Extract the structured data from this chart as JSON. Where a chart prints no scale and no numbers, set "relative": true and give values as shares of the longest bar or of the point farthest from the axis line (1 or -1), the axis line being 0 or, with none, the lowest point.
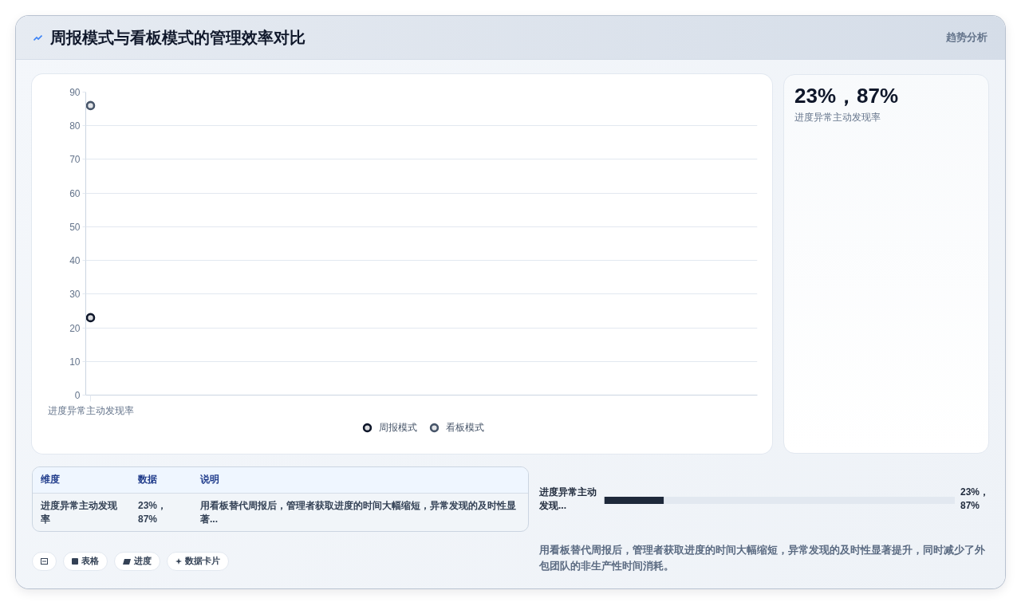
{
  "chart_data": [
    {
      "type": "line",
      "title": "周报模式与看板模式的管理效率对比",
      "categories": [
        "进度异常主动发现率"
      ],
      "series": [
        {
          "name": "周报模式",
          "color": "#0f172a",
          "values": [
            23
          ]
        },
        {
          "name": "看板模式",
          "color": "#475569",
          "values": [
            86
          ]
        }
      ],
      "ylim": [
        0,
        90
      ],
      "yticks": [
        0,
        10,
        20,
        30,
        40,
        50,
        60,
        70,
        80,
        90
      ],
      "grid": "y",
      "legend": "bottom",
      "marker": "circle"
    },
    {
      "type": "other",
      "title": "趋势分析",
      "annotations": [
        "23%，87%",
        "进度异常主动发现率"
      ]
    },
    {
      "type": "other",
      "categories": [
        "维度",
        "数据",
        "说明"
      ],
      "annotations": [
        "进度异常主动发现率",
        "23%，87%",
        "用看板替代周报后，管理者获取进度的时间大幅缩短，异常发现的及时性显著..."
      ]
    },
    {
      "type": "bar",
      "orientation": "horizontal",
      "stacked": true,
      "relative": true,
      "categories": [
        "进度异常主动发现..."
      ],
      "series": [
        {
          "color": "#1e293b",
          "values": [
            0.17
          ]
        },
        {
          "color": "#e2e8f0",
          "values": [
            0.83
          ]
        }
      ],
      "annotations": [
        "23%，87%",
        "用看板替代周报后，管理者获取进度的时间大幅缩短，异常发现的及时性显著提升，同时减少了外包团队的非生产性时间消耗。"
      ]
    },
    {
      "type": "other",
      "categories": [
        null,
        "表格",
        "进度",
        "数据卡片"
      ]
    }
  ]
}
